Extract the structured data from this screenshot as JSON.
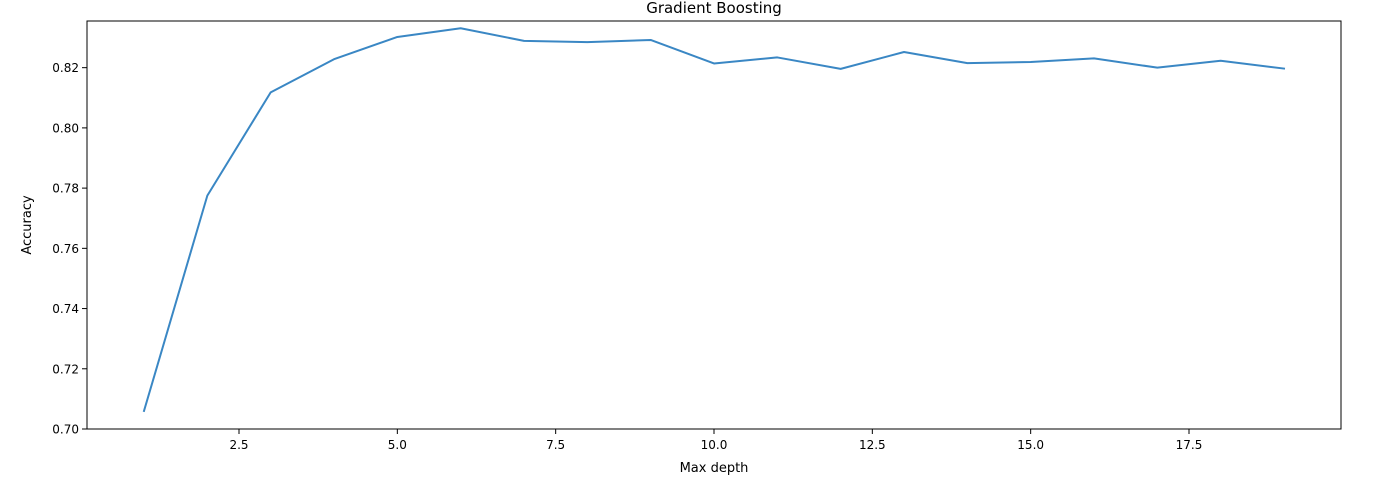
{
  "chart_data": {
    "type": "line",
    "title": "Gradient Boosting",
    "xlabel": "Max depth",
    "ylabel": "Accuracy",
    "xlim": [
      0.1,
      19.9
    ],
    "ylim": [
      0.7,
      0.8355
    ],
    "xticks": [
      2.5,
      5.0,
      7.5,
      10.0,
      12.5,
      15.0,
      17.5
    ],
    "xtick_labels": [
      "2.5",
      "5.0",
      "7.5",
      "10.0",
      "12.5",
      "15.0",
      "17.5"
    ],
    "yticks": [
      0.7,
      0.72,
      0.74,
      0.76,
      0.78,
      0.8,
      0.82
    ],
    "ytick_labels": [
      "0.70",
      "0.72",
      "0.74",
      "0.76",
      "0.78",
      "0.80",
      "0.82"
    ],
    "grid": false,
    "series": [
      {
        "color": "#3a87c4",
        "x": [
          1,
          2,
          3,
          4,
          5,
          6,
          7,
          8,
          9,
          10,
          11,
          12,
          13,
          14,
          15,
          16,
          17,
          18,
          19
        ],
        "y": [
          0.706,
          0.7775,
          0.8118,
          0.8228,
          0.8302,
          0.8331,
          0.8289,
          0.8285,
          0.8292,
          0.8214,
          0.8234,
          0.8196,
          0.8252,
          0.8215,
          0.8219,
          0.8231,
          0.82,
          0.8223,
          0.8197
        ]
      }
    ]
  }
}
